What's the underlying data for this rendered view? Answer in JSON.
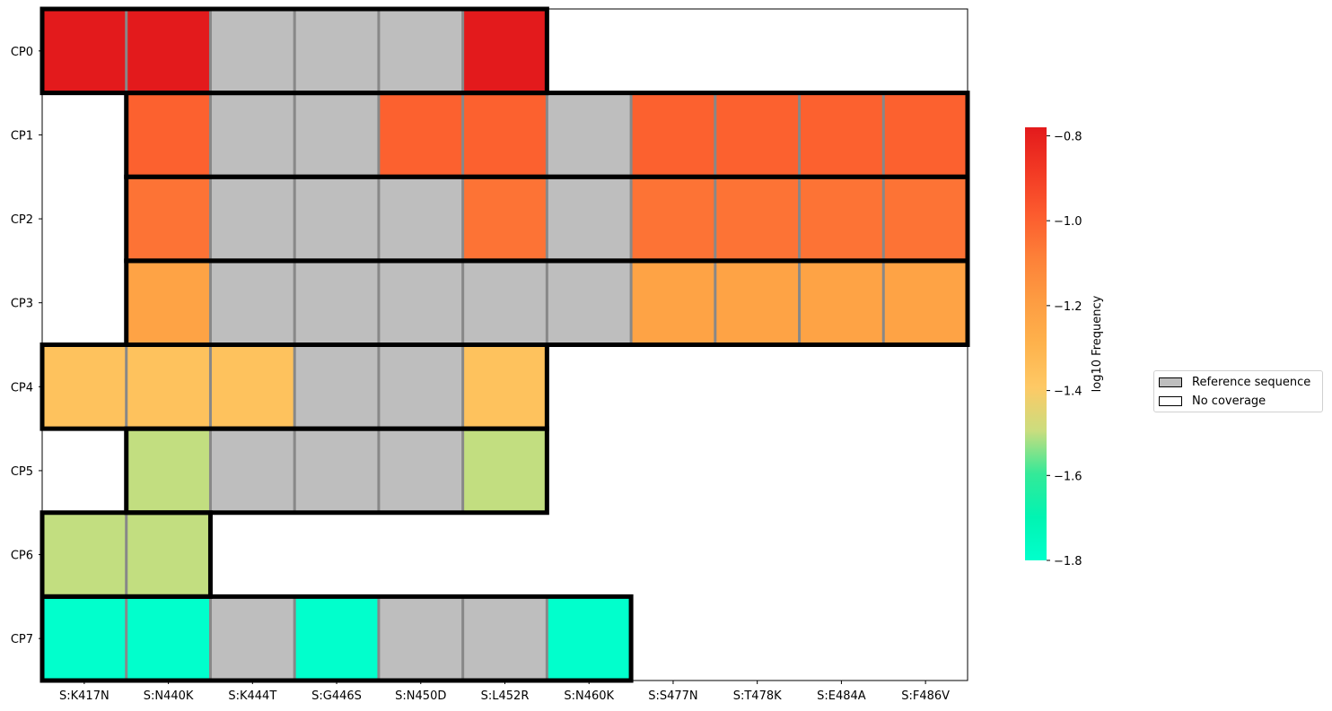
{
  "chart_data": {
    "type": "heatmap",
    "title": "",
    "xlabel": "",
    "ylabel": "",
    "x_categories": [
      "S:K417N",
      "S:N440K",
      "S:K444T",
      "S:G446S",
      "S:N450D",
      "S:L452R",
      "S:N460K",
      "S:S477N",
      "S:T478K",
      "S:E484A",
      "S:F486V"
    ],
    "y_categories": [
      "CP0",
      "CP1",
      "CP2",
      "CP3",
      "CP4",
      "CP5",
      "CP6",
      "CP7"
    ],
    "cell_legend": {
      "ref": "Reference sequence",
      "none": "No coverage"
    },
    "rows": [
      {
        "name": "CP0",
        "values": [
          -0.78,
          -0.78,
          "ref",
          "ref",
          "ref",
          -0.78,
          "none",
          "none",
          "none",
          "none",
          "none"
        ]
      },
      {
        "name": "CP1",
        "values": [
          "none",
          -1.0,
          "ref",
          "ref",
          -1.0,
          -1.0,
          "ref",
          -1.0,
          -1.0,
          -1.0,
          -1.0
        ]
      },
      {
        "name": "CP2",
        "values": [
          "none",
          -1.05,
          "ref",
          "ref",
          "ref",
          -1.05,
          "ref",
          -1.05,
          -1.05,
          -1.05,
          -1.05
        ]
      },
      {
        "name": "CP3",
        "values": [
          "none",
          -1.22,
          "ref",
          "ref",
          "ref",
          "ref",
          "ref",
          -1.22,
          -1.22,
          -1.22,
          -1.22
        ]
      },
      {
        "name": "CP4",
        "values": [
          -1.36,
          -1.36,
          -1.36,
          "ref",
          "ref",
          -1.36,
          "none",
          "none",
          "none",
          "none",
          "none"
        ]
      },
      {
        "name": "CP5",
        "values": [
          "none",
          -1.5,
          "ref",
          "ref",
          "ref",
          -1.5,
          "none",
          "none",
          "none",
          "none",
          "none"
        ]
      },
      {
        "name": "CP6",
        "values": [
          -1.5,
          -1.5,
          "none",
          "none",
          "none",
          "none",
          "none",
          "none",
          "none",
          "none",
          "none"
        ]
      },
      {
        "name": "CP7",
        "values": [
          -1.8,
          -1.8,
          "ref",
          -1.8,
          "ref",
          "ref",
          -1.8,
          "none",
          "none",
          "none",
          "none"
        ]
      }
    ],
    "colorbar": {
      "label": "log10 Frequency",
      "range": [
        -1.8,
        -0.78
      ],
      "ticks": [
        -0.8,
        -1.0,
        -1.2,
        -1.4,
        -1.6,
        -1.8
      ],
      "tick_labels": [
        "−0.8",
        "−1.0",
        "−1.2",
        "−1.4",
        "−1.6",
        "−1.8"
      ],
      "colormap": "YlOrRd",
      "colormap_range": [
        0.0,
        0.75
      ]
    },
    "colors": {
      "reference": "#bebebe",
      "no_coverage": "#ffffff",
      "cell_divider": "#888888",
      "group_border": "#000000"
    }
  },
  "legend": {
    "items": [
      {
        "label": "Reference sequence",
        "color": "#bebebe"
      },
      {
        "label": "No coverage",
        "color": "#ffffff"
      }
    ]
  }
}
